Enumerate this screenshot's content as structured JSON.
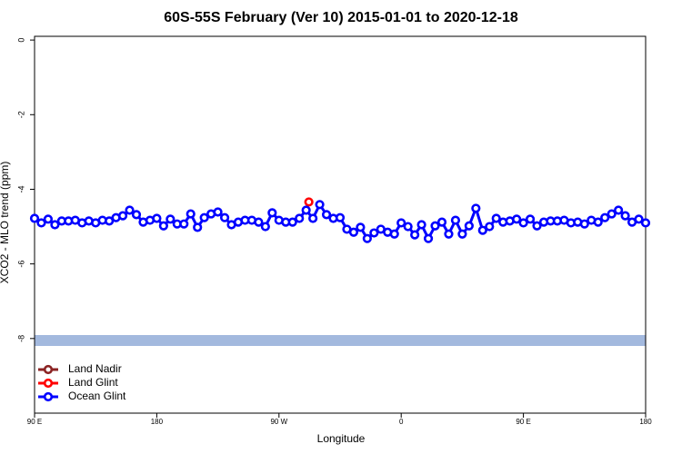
{
  "chart_data": {
    "type": "line",
    "title": "60S-55S February (Ver 10)   2015-01-01 to 2020-12-18",
    "x_label": "Longitude",
    "y_label": "XCO2 - MLO trend (ppm)",
    "xlim": [
      90,
      540
    ],
    "xticks": [
      {
        "value": 90,
        "label": "90 E"
      },
      {
        "value": 180,
        "label": "180"
      },
      {
        "value": 270,
        "label": "90 W"
      },
      {
        "value": 360,
        "label": "0"
      },
      {
        "value": 450,
        "label": "90 E"
      },
      {
        "value": 540,
        "label": "180"
      }
    ],
    "ylim": [
      -10,
      0.1
    ],
    "yticks": [
      0,
      -2,
      -4,
      -6,
      -8
    ],
    "legend": "bottom-left",
    "series": [
      {
        "name": "Land Nadir",
        "color": "#8b2323",
        "x": [],
        "values": []
      },
      {
        "name": "Land Glint",
        "color": "#ff0000",
        "x": [
          292
        ],
        "values": [
          -4.34
        ]
      },
      {
        "name": "Ocean Glint",
        "color": "#0000ff",
        "x": [
          90,
          95,
          100,
          105,
          110,
          115,
          120,
          125,
          130,
          135,
          140,
          145,
          150,
          155,
          160,
          165,
          170,
          175,
          180,
          185,
          190,
          195,
          200,
          205,
          210,
          215,
          220,
          225,
          230,
          235,
          240,
          245,
          250,
          255,
          260,
          265,
          270,
          275,
          280,
          285,
          290,
          295,
          300,
          305,
          310,
          315,
          320,
          325,
          330,
          335,
          340,
          345,
          350,
          355,
          360,
          365,
          370,
          375,
          380,
          385,
          390,
          395,
          400,
          405,
          410,
          415,
          420,
          425,
          430,
          435,
          440,
          445,
          450,
          455,
          460,
          465,
          470,
          475,
          480,
          485,
          490,
          495,
          500,
          505,
          510,
          515,
          520,
          525,
          530,
          535,
          540
        ],
        "values": [
          -4.78,
          -4.9,
          -4.8,
          -4.95,
          -4.85,
          -4.85,
          -4.83,
          -4.9,
          -4.85,
          -4.9,
          -4.83,
          -4.85,
          -4.76,
          -4.71,
          -4.56,
          -4.68,
          -4.88,
          -4.83,
          -4.78,
          -4.98,
          -4.8,
          -4.93,
          -4.93,
          -4.66,
          -5.02,
          -4.76,
          -4.66,
          -4.61,
          -4.76,
          -4.95,
          -4.88,
          -4.83,
          -4.83,
          -4.88,
          -5.0,
          -4.63,
          -4.83,
          -4.88,
          -4.88,
          -4.78,
          -4.56,
          -4.78,
          -4.41,
          -4.68,
          -4.78,
          -4.76,
          -5.07,
          -5.15,
          -5.02,
          -5.32,
          -5.17,
          -5.07,
          -5.15,
          -5.2,
          -4.9,
          -5.0,
          -5.22,
          -4.95,
          -5.32,
          -4.98,
          -4.88,
          -5.2,
          -4.83,
          -5.2,
          -4.98,
          -4.51,
          -5.1,
          -5.0,
          -4.78,
          -4.88,
          -4.85,
          -4.8,
          -4.9,
          -4.8,
          -4.98,
          -4.88,
          -4.85,
          -4.85,
          -4.83,
          -4.9,
          -4.88,
          -4.93,
          -4.83,
          -4.88,
          -4.76,
          -4.66,
          -4.56,
          -4.71,
          -4.88,
          -4.8,
          -4.9
        ]
      }
    ]
  }
}
